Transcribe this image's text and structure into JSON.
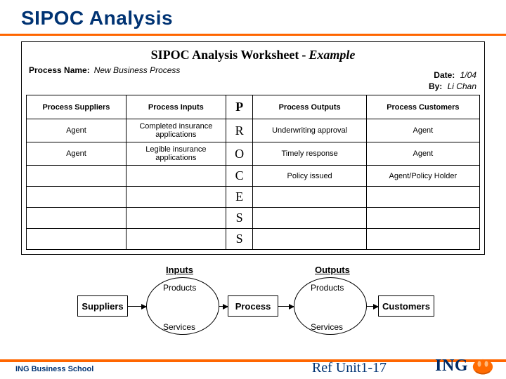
{
  "title": "SIPOC Analysis",
  "worksheet": {
    "heading_main": "SIPOC Analysis Worksheet",
    "heading_dash": "-",
    "heading_em": "Example",
    "process_name_label": "Process Name:",
    "process_name_value": "New Business Process",
    "date_label": "Date:",
    "date_value": "1/04",
    "by_label": "By:",
    "by_value": "Li Chan"
  },
  "table": {
    "headers": {
      "suppliers": "Process Suppliers",
      "inputs": "Process Inputs",
      "outputs": "Process Outputs",
      "customers": "Process Customers"
    },
    "process_letters": [
      "P",
      "R",
      "O",
      "C",
      "E",
      "S",
      "S"
    ],
    "rows": [
      {
        "supplier": "Agent",
        "input": "Completed insurance applications",
        "output": "Underwriting approval",
        "customer": "Agent"
      },
      {
        "supplier": "Agent",
        "input": "Legible insurance applications",
        "output": "Timely response",
        "customer": "Agent"
      },
      {
        "supplier": "",
        "input": "",
        "output": "Policy issued",
        "customer": "Agent/Policy Holder"
      },
      {
        "supplier": "",
        "input": "",
        "output": "",
        "customer": ""
      },
      {
        "supplier": "",
        "input": "",
        "output": "",
        "customer": ""
      },
      {
        "supplier": "",
        "input": "",
        "output": "",
        "customer": ""
      }
    ]
  },
  "flow": {
    "inputs_label": "Inputs",
    "outputs_label": "Outputs",
    "products": "Products",
    "services": "Services",
    "suppliers": "Suppliers",
    "process": "Process",
    "customers": "Customers"
  },
  "footer": {
    "left": "ING Business School",
    "mid": "Ref Unit1-17",
    "logo_text": "ING"
  },
  "colors": {
    "blue": "#003373",
    "orange": "#ff6600",
    "logo_orange": "#ff6a00",
    "logo_blue": "#002b66"
  }
}
